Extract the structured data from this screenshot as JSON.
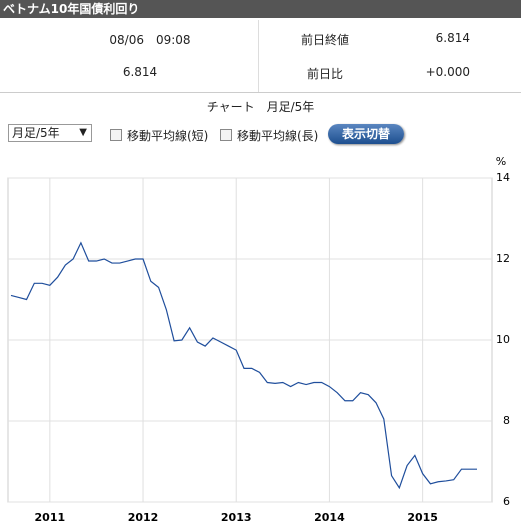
{
  "header": {
    "title": "ベトナム10年国債利回り"
  },
  "info": {
    "time": "08/06　09:08",
    "price": "6.814",
    "prev_close_label": "前日終値",
    "prev_close": "6.814",
    "change_label": "前日比",
    "change": "+0.000"
  },
  "chart_label": "チャート　月足/5年",
  "controls": {
    "period": "月足/5年",
    "ma_short": "移動平均線(短)",
    "ma_long": "移動平均線(長)",
    "button": "表示切替"
  },
  "chart_data": {
    "type": "line",
    "y_unit": "%",
    "color": "#1f4e9c",
    "grid": true,
    "categories": [
      null,
      null,
      null,
      null,
      null,
      "2011",
      null,
      null,
      null,
      null,
      null,
      null,
      null,
      null,
      null,
      null,
      null,
      "2012",
      null,
      null,
      null,
      null,
      null,
      null,
      null,
      null,
      null,
      null,
      null,
      "2013",
      null,
      null,
      null,
      null,
      null,
      null,
      null,
      null,
      null,
      null,
      null,
      "2014",
      null,
      null,
      null,
      null,
      null,
      null,
      null,
      null,
      null,
      null,
      null,
      "2015",
      null,
      null,
      null,
      null,
      null,
      null,
      null
    ],
    "values": [
      11.1,
      11.05,
      11.0,
      11.4,
      11.4,
      11.35,
      11.55,
      11.85,
      12.0,
      12.4,
      11.95,
      11.95,
      12.0,
      11.9,
      11.9,
      11.95,
      12.0,
      12.0,
      11.45,
      11.3,
      10.75,
      9.98,
      10.0,
      10.3,
      9.95,
      9.85,
      10.05,
      9.95,
      9.85,
      9.75,
      9.3,
      9.3,
      9.2,
      8.95,
      8.93,
      8.95,
      8.85,
      8.95,
      8.9,
      8.95,
      8.95,
      8.85,
      8.7,
      8.5,
      8.5,
      8.7,
      8.65,
      8.45,
      8.05,
      6.65,
      6.35,
      6.9,
      7.15,
      6.7,
      6.45,
      6.5,
      6.52,
      6.55,
      6.81,
      6.81,
      6.81
    ],
    "ylim": [
      6,
      14
    ],
    "yticks": [
      6,
      8,
      10,
      12,
      14
    ]
  }
}
